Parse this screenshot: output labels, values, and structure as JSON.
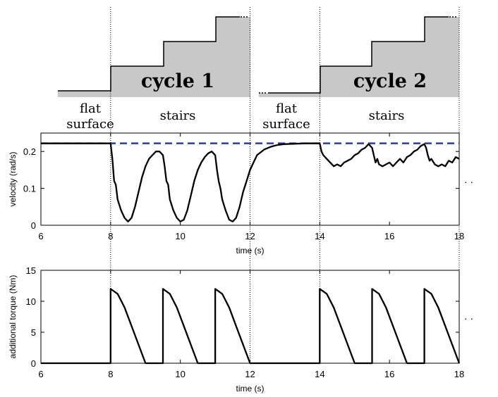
{
  "diagram": {
    "regions": [
      "flat\nsurface",
      "stairs",
      "flat\nsurface",
      "stairs"
    ],
    "cycle_labels": [
      "cycle 1",
      "cycle 2"
    ],
    "continuation": "· ·",
    "terrain_fill": "#c8c8c8"
  },
  "chart_data": [
    {
      "type": "line",
      "xlabel": "time (s)",
      "ylabel": "velocity (rad/s)",
      "xlim": [
        6,
        18
      ],
      "ylim": [
        0,
        0.25
      ],
      "xticks": [
        6,
        8,
        10,
        12,
        14,
        16,
        18
      ],
      "yticks": [
        0,
        0.1,
        0.2
      ],
      "grid": false,
      "reference_line": {
        "y": 0.222,
        "style": "dashed",
        "color": "#2b3ea8"
      },
      "series": [
        {
          "color": "#000000",
          "x": [
            6,
            7,
            8,
            8.05,
            8.1,
            8.15,
            8.2,
            8.3,
            8.4,
            8.5,
            8.6,
            8.7,
            8.8,
            8.9,
            9.0,
            9.1,
            9.2,
            9.3,
            9.4,
            9.5,
            9.55,
            9.6,
            9.65,
            9.7,
            9.8,
            9.9,
            10.0,
            10.1,
            10.2,
            10.3,
            10.4,
            10.5,
            10.6,
            10.7,
            10.8,
            10.9,
            11.0,
            11.05,
            11.1,
            11.15,
            11.2,
            11.3,
            11.4,
            11.5,
            11.6,
            11.7,
            11.8,
            11.9,
            12.0,
            12.1,
            12.2,
            12.4,
            12.6,
            12.8,
            13.0,
            13.3,
            13.6,
            14.0,
            14.05,
            14.1,
            14.2,
            14.3,
            14.4,
            14.5,
            14.6,
            14.7,
            14.8,
            14.9,
            15.0,
            15.1,
            15.2,
            15.3,
            15.4,
            15.5,
            15.55,
            15.6,
            15.65,
            15.7,
            15.8,
            15.9,
            16.0,
            16.1,
            16.2,
            16.3,
            16.4,
            16.5,
            16.6,
            16.7,
            16.8,
            16.9,
            17.0,
            17.05,
            17.1,
            17.15,
            17.2,
            17.3,
            17.4,
            17.5,
            17.6,
            17.7,
            17.8,
            17.9,
            18.0
          ],
          "y": [
            0.222,
            0.222,
            0.222,
            0.18,
            0.12,
            0.11,
            0.07,
            0.04,
            0.02,
            0.01,
            0.02,
            0.05,
            0.09,
            0.13,
            0.16,
            0.18,
            0.19,
            0.2,
            0.2,
            0.19,
            0.16,
            0.12,
            0.11,
            0.07,
            0.04,
            0.02,
            0.01,
            0.015,
            0.04,
            0.08,
            0.12,
            0.15,
            0.17,
            0.185,
            0.195,
            0.2,
            0.19,
            0.15,
            0.12,
            0.1,
            0.07,
            0.04,
            0.015,
            0.01,
            0.02,
            0.05,
            0.09,
            0.12,
            0.15,
            0.17,
            0.19,
            0.205,
            0.213,
            0.218,
            0.22,
            0.221,
            0.222,
            0.222,
            0.2,
            0.19,
            0.18,
            0.17,
            0.16,
            0.165,
            0.16,
            0.17,
            0.175,
            0.18,
            0.19,
            0.195,
            0.205,
            0.21,
            0.22,
            0.21,
            0.19,
            0.17,
            0.18,
            0.165,
            0.16,
            0.165,
            0.17,
            0.16,
            0.17,
            0.18,
            0.17,
            0.185,
            0.19,
            0.2,
            0.205,
            0.215,
            0.22,
            0.21,
            0.19,
            0.175,
            0.18,
            0.165,
            0.16,
            0.165,
            0.16,
            0.175,
            0.17,
            0.185,
            0.18
          ]
        }
      ]
    },
    {
      "type": "line",
      "xlabel": "time (s)",
      "ylabel": "additional torque (Nm)",
      "xlim": [
        6,
        18
      ],
      "ylim": [
        0,
        15
      ],
      "xticks": [
        6,
        8,
        10,
        12,
        14,
        16,
        18
      ],
      "yticks": [
        0,
        5,
        10,
        15
      ],
      "grid": false,
      "series": [
        {
          "color": "#000000",
          "x": [
            6,
            8,
            8,
            8.2,
            8.4,
            8.6,
            8.8,
            9.0,
            9.5,
            9.5,
            9.7,
            9.9,
            10.1,
            10.3,
            10.5,
            11.0,
            11.0,
            11.2,
            11.4,
            11.6,
            11.8,
            12.0,
            14.0,
            14.0,
            14.2,
            14.4,
            14.6,
            14.8,
            15.0,
            15.5,
            15.5,
            15.7,
            15.9,
            16.1,
            16.3,
            16.5,
            17.0,
            17.0,
            17.2,
            17.4,
            17.6,
            17.8,
            18.0
          ],
          "y": [
            0,
            0,
            12,
            11.2,
            9.0,
            6.0,
            3.0,
            0,
            0,
            12,
            11.2,
            9.0,
            6.0,
            3.0,
            0,
            0,
            12,
            11.2,
            9.0,
            6.0,
            3.0,
            0,
            0,
            12,
            11.2,
            9.0,
            6.0,
            3.0,
            0,
            0,
            12,
            11.2,
            9.0,
            6.0,
            3.0,
            0,
            0,
            12,
            11.2,
            9.0,
            6.0,
            3.0,
            0
          ]
        }
      ]
    }
  ]
}
